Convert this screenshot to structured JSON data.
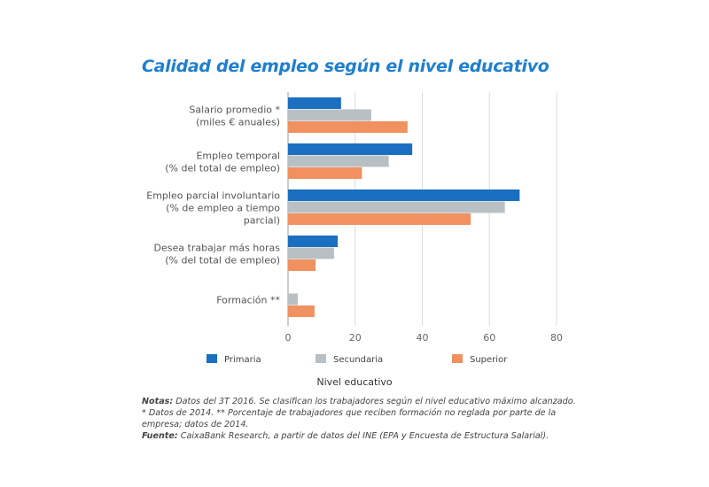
{
  "title": "Calidad del empleo según el nivel educativo",
  "chart_data": {
    "type": "bar",
    "orientation": "horizontal",
    "title": "Calidad del empleo según el nivel educativo",
    "categories": [
      [
        "Salario promedio *",
        "(miles € anuales)"
      ],
      [
        "Empleo temporal",
        "(% del total de empleo)"
      ],
      [
        "Empleo parcial involuntario",
        "(% de empleo a tiempo",
        "parcial)"
      ],
      [
        "Desea trabajar más horas",
        "(% del total de empleo)"
      ],
      [
        "Formación **"
      ]
    ],
    "series": [
      {
        "name": "Primaria",
        "color": "#1a6fc0",
        "values": [
          15.8,
          37,
          69,
          14.8,
          0
        ]
      },
      {
        "name": "Secundaria",
        "color": "#b8c0c4",
        "values": [
          24.8,
          30,
          64.6,
          13.7,
          2.9
        ]
      },
      {
        "name": "Superior",
        "color": "#f0915f",
        "values": [
          35.6,
          22,
          54.4,
          8.2,
          7.9
        ]
      }
    ],
    "xlim": [
      0,
      80
    ],
    "xticks": [
      "0",
      "20",
      "40",
      "60",
      "80"
    ],
    "grid": true,
    "legend_title": "Nivel educativo",
    "legend_placement": "bottom"
  },
  "notes": {
    "notas_label": "Notas:",
    "notas_text": " Datos del 3T 2016. Se clasifican los trabajadores según el nivel educativo máximo alcanzado.  * Datos de 2014.  ** Porcentaje de trabajadores que reciben formación no reglada por parte de la empresa; datos de 2014.",
    "fuente_label": "Fuente:",
    "fuente_text": " CaixaBank Research, a partir de datos del INE (EPA y Encuesta de Estructura Salarial)."
  }
}
